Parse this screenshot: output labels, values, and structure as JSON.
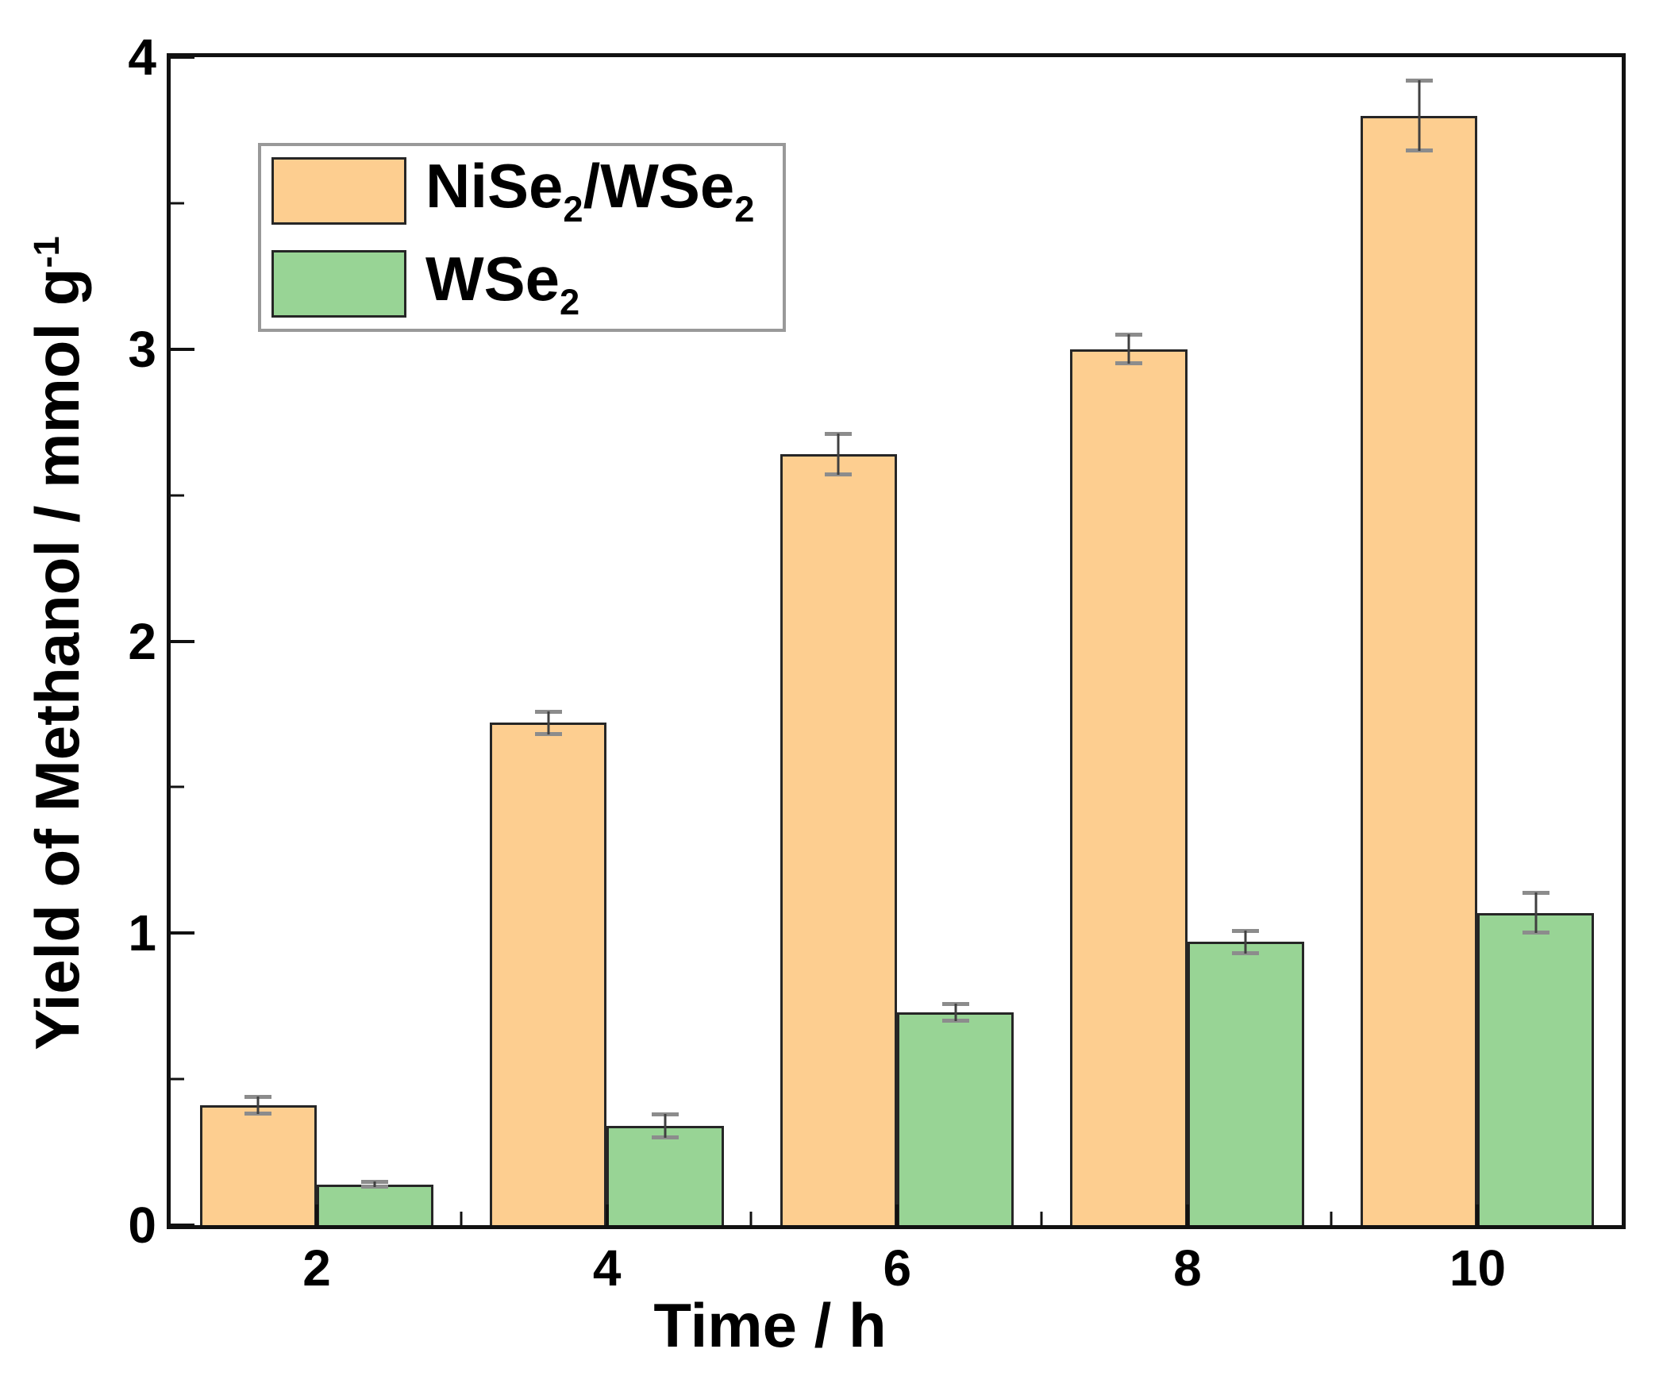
{
  "page": {
    "background": "#ffffff"
  },
  "chart_data": {
    "type": "bar",
    "title": "",
    "xlabel": "Time / h",
    "ylabel": "Yield of Methanol / mmol g⁻¹",
    "ylabel_parts": {
      "main": "Yield of Methanol / mmol g",
      "superscript": "-1"
    },
    "xlim_categories": [
      2,
      4,
      6,
      8,
      10
    ],
    "categories": [
      "2",
      "4",
      "6",
      "8",
      "10"
    ],
    "y_tick_labels": [
      "0",
      "1",
      "2",
      "3",
      "4"
    ],
    "y_major_ticks": [
      0,
      1,
      2,
      3,
      4
    ],
    "y_minor_ticks": [
      0.5,
      1.5,
      2.5,
      3.5
    ],
    "ylim": [
      0,
      4
    ],
    "grid": false,
    "legend_position": "upper-left",
    "series": [
      {
        "name": "NiSe2/WSe2",
        "name_parts": [
          {
            "t": "NiSe"
          },
          {
            "t": "2",
            "sub": true
          },
          {
            "t": "/WSe"
          },
          {
            "t": "2",
            "sub": true
          }
        ],
        "color": "#fdce90",
        "values": [
          0.41,
          1.72,
          2.64,
          3.0,
          3.8
        ],
        "errors": [
          0.03,
          0.04,
          0.07,
          0.05,
          0.12
        ]
      },
      {
        "name": "WSe2",
        "name_parts": [
          {
            "t": "WSe"
          },
          {
            "t": "2",
            "sub": true
          }
        ],
        "color": "#98d495",
        "values": [
          0.14,
          0.34,
          0.73,
          0.97,
          1.07
        ],
        "errors": [
          0.01,
          0.04,
          0.03,
          0.04,
          0.07
        ]
      }
    ],
    "colors": {
      "bar_border": "#262626",
      "axis": "#111111",
      "error_stem": "#404040",
      "error_cap": "#8c8c8c",
      "legend_border": "#999999",
      "text": "#000000"
    }
  }
}
